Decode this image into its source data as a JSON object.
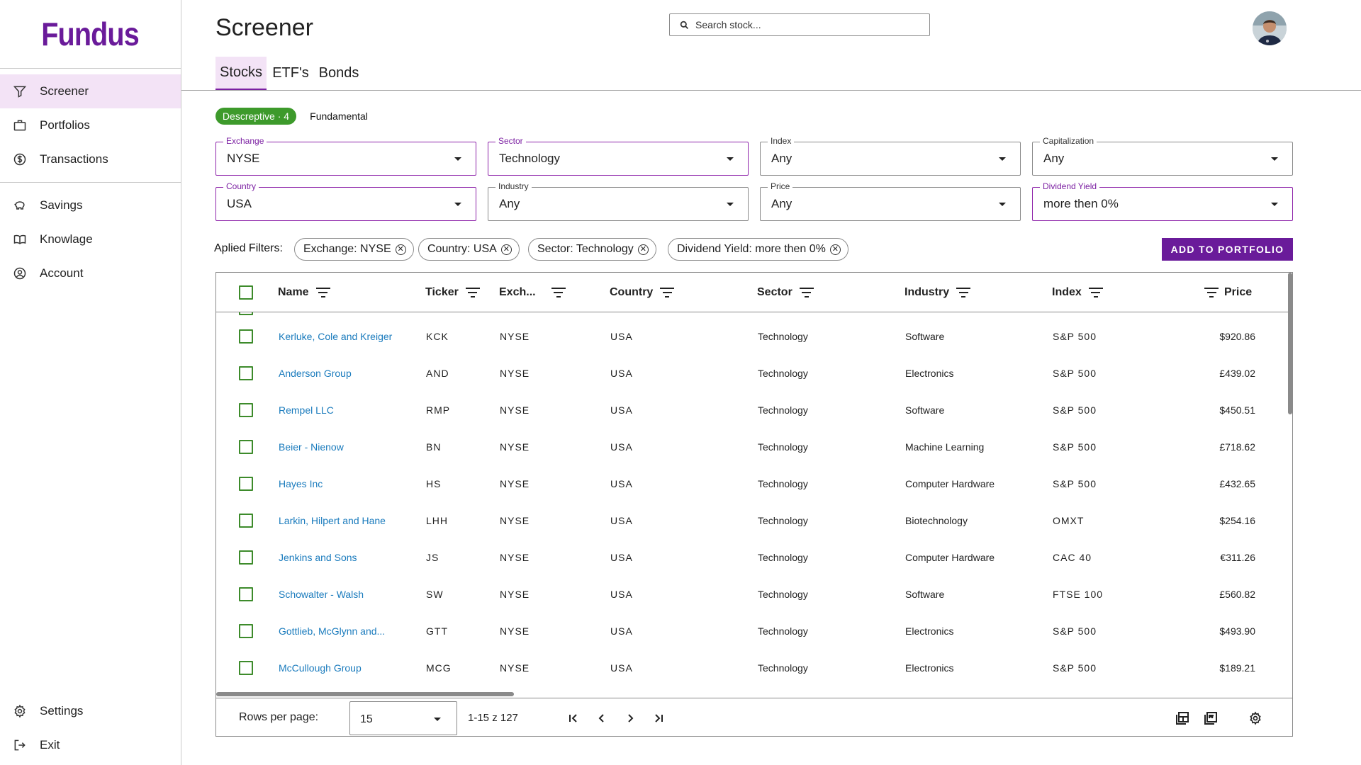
{
  "app": {
    "logo": "Fundus"
  },
  "sidebar": {
    "main": [
      {
        "label": "Screener",
        "icon": "filter-icon",
        "active": true
      },
      {
        "label": "Portfolios",
        "icon": "briefcase-icon"
      },
      {
        "label": "Transactions",
        "icon": "dollar-circle-icon"
      }
    ],
    "secondary": [
      {
        "label": "Savings",
        "icon": "piggy-bank-icon"
      },
      {
        "label": "Knowlage",
        "icon": "open-book-icon"
      },
      {
        "label": "Account",
        "icon": "account-circle-icon"
      }
    ],
    "bottom": [
      {
        "label": "Settings",
        "icon": "gear-icon"
      },
      {
        "label": "Exit",
        "icon": "logout-icon"
      }
    ]
  },
  "header": {
    "title": "Screener",
    "search_placeholder": "Search stock..."
  },
  "tabs": [
    {
      "label": "Stocks",
      "active": true
    },
    {
      "label": "ETF's"
    },
    {
      "label": "Bonds"
    }
  ],
  "filter_modes": {
    "descriptive": "Descreptive · 4",
    "fundamental": "Fundamental"
  },
  "filters": [
    {
      "label": "Exchange",
      "value": "NYSE",
      "active": true
    },
    {
      "label": "Sector",
      "value": "Technology",
      "active": true
    },
    {
      "label": "Index",
      "value": "Any",
      "active": false
    },
    {
      "label": "Capitalization",
      "value": "Any",
      "active": false
    },
    {
      "label": "Country",
      "value": "USA",
      "active": true
    },
    {
      "label": "Industry",
      "value": "Any",
      "active": false
    },
    {
      "label": "Price",
      "value": "Any",
      "active": false
    },
    {
      "label": "Dividend Yield",
      "value": "more then 0%",
      "active": true
    }
  ],
  "applied": {
    "label": "Aplied Filters:",
    "chips": [
      "Exchange: NYSE",
      "Country: USA",
      "Sector: Technology",
      "Dividend Yield: more then 0%"
    ],
    "add_button": "ADD TO PORTFOLIO"
  },
  "table": {
    "columns": [
      "Name",
      "Ticker",
      "Exch...",
      "Country",
      "Sector",
      "Industry",
      "Index",
      "Price"
    ],
    "rows": [
      {
        "name": "Kerluke, Cole and Kreiger",
        "ticker": "KCK",
        "exchange": "NYSE",
        "country": "USA",
        "sector": "Technology",
        "industry": "Software",
        "index": "S&P 500",
        "price": "$920.86"
      },
      {
        "name": "Anderson Group",
        "ticker": "AND",
        "exchange": "NYSE",
        "country": "USA",
        "sector": "Technology",
        "industry": "Electronics",
        "index": "S&P 500",
        "price": "£439.02"
      },
      {
        "name": "Rempel LLC",
        "ticker": "RMP",
        "exchange": "NYSE",
        "country": "USA",
        "sector": "Technology",
        "industry": "Software",
        "index": "S&P 500",
        "price": "$450.51"
      },
      {
        "name": "Beier - Nienow",
        "ticker": "BN",
        "exchange": "NYSE",
        "country": "USA",
        "sector": "Technology",
        "industry": "Machine Learning",
        "index": "S&P 500",
        "price": "£718.62"
      },
      {
        "name": "Hayes Inc",
        "ticker": "HS",
        "exchange": "NYSE",
        "country": "USA",
        "sector": "Technology",
        "industry": "Computer Hardware",
        "index": "S&P 500",
        "price": "£432.65"
      },
      {
        "name": "Larkin, Hilpert and Hane",
        "ticker": "LHH",
        "exchange": "NYSE",
        "country": "USA",
        "sector": "Technology",
        "industry": "Biotechnology",
        "index": "OMXT",
        "price": "$254.16"
      },
      {
        "name": "Jenkins and Sons",
        "ticker": "JS",
        "exchange": "NYSE",
        "country": "USA",
        "sector": "Technology",
        "industry": "Computer Hardware",
        "index": "CAC 40",
        "price": "€311.26"
      },
      {
        "name": "Schowalter - Walsh",
        "ticker": "SW",
        "exchange": "NYSE",
        "country": "USA",
        "sector": "Technology",
        "industry": "Software",
        "index": "FTSE 100",
        "price": "£560.82"
      },
      {
        "name": "Gottlieb, McGlynn and...",
        "ticker": "GTT",
        "exchange": "NYSE",
        "country": "USA",
        "sector": "Technology",
        "industry": "Electronics",
        "index": "S&P 500",
        "price": "$493.90"
      },
      {
        "name": "McCullough Group",
        "ticker": "MCG",
        "exchange": "NYSE",
        "country": "USA",
        "sector": "Technology",
        "industry": "Electronics",
        "index": "S&P 500",
        "price": "$189.21"
      }
    ]
  },
  "pagination": {
    "rows_per_page_label": "Rows per page:",
    "rows_per_page": "15",
    "range": "1-15 z 127"
  },
  "colors": {
    "brand": "#6a1b9a",
    "active_bg": "#f3e3f6",
    "chip_green": "#3d9a2b",
    "link": "#1a7bbd"
  }
}
